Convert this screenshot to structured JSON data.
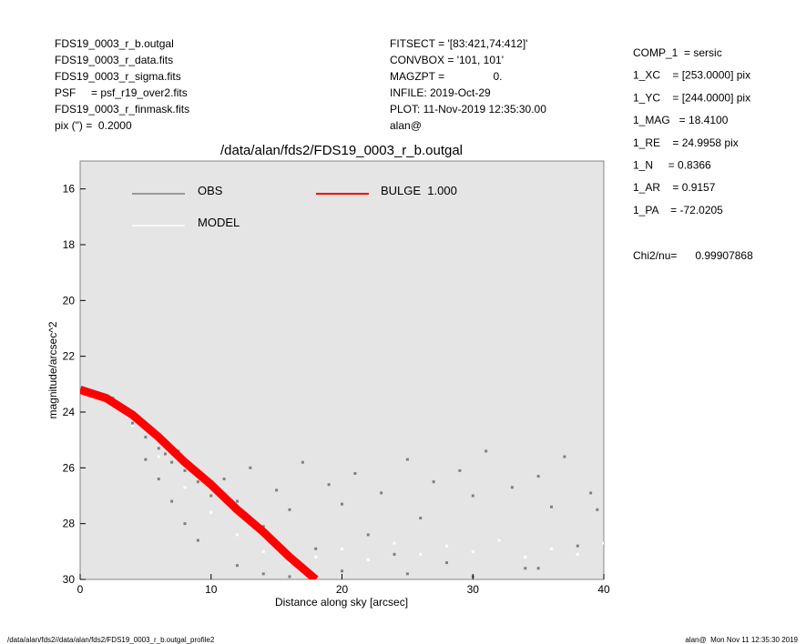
{
  "header": {
    "left": [
      "FDS19_0003_r_b.outgal",
      "FDS19_0003_r_data.fits",
      "FDS19_0003_r_sigma.fits",
      "PSF     = psf_r19_over2.fits",
      "FDS19_0003_r_finmask.fits",
      "pix (\") =  0.2000"
    ],
    "middle": [
      "FITSECT = '[83:421,74:412]'",
      "CONVBOX = '101, 101'",
      "MAGZPT =                0.",
      "INFILE: 2019-Oct-29",
      "PLOT: 11-Nov-2019 12:35:30.00",
      "alan@"
    ],
    "right": [
      "COMP_1  = sersic",
      "1_XC    = [253.0000] pix",
      "1_YC    = [244.0000] pix",
      "1_MAG   = 18.4100",
      "1_RE    = 24.9958 pix",
      "1_N     = 0.8366",
      "1_AR    = 0.9157",
      "1_PA    = -72.0205"
    ],
    "chi2": "Chi2/nu=      0.99907868"
  },
  "footer": {
    "left": "/data/alan/fds2//data/alan/fds2/FDS19_0003_r_b.outgal_profile2",
    "right": "alan@  Mon Nov 11 12:35:30 2019"
  },
  "chart_data": {
    "type": "scatter",
    "title": "/data/alan/fds2/FDS19_0003_r_b.outgal",
    "xlabel": "Distance along sky [arcsec]",
    "ylabel": "magnitude/arcsec^2",
    "xlim": [
      0,
      40
    ],
    "xticks": [
      0,
      10,
      20,
      30,
      40
    ],
    "ylim": [
      30,
      15
    ],
    "yticks": [
      16,
      18,
      20,
      22,
      24,
      26,
      28,
      30
    ],
    "background": "#e5e5e5",
    "series": [
      {
        "name": "OBS",
        "color": "#808080",
        "style": "points",
        "x": [
          1,
          1.5,
          2,
          2.5,
          3,
          3.5,
          4,
          4.5,
          5,
          5.5,
          6,
          6.5,
          7,
          7.5,
          8,
          8.5,
          9,
          9.5,
          10,
          11,
          12,
          13,
          14,
          15,
          16,
          17,
          18,
          19,
          20,
          21,
          22,
          23,
          24,
          25,
          26,
          27,
          28,
          29,
          30,
          31,
          32,
          33,
          34,
          35,
          36,
          37,
          38,
          39,
          39.5,
          5,
          6,
          7,
          8,
          9,
          12,
          14,
          16,
          20,
          25,
          30,
          35
        ],
        "y": [
          23.3,
          23.4,
          23.6,
          23.5,
          23.9,
          24.0,
          24.4,
          24.3,
          24.9,
          24.7,
          25.3,
          25.5,
          25.8,
          25.4,
          26.1,
          25.9,
          26.5,
          26.3,
          27.0,
          26.4,
          27.2,
          26.0,
          28.1,
          26.8,
          27.5,
          25.8,
          28.9,
          26.6,
          27.3,
          26.2,
          28.4,
          26.9,
          29.1,
          25.7,
          27.8,
          26.5,
          29.4,
          26.1,
          27.0,
          25.4,
          28.6,
          26.7,
          29.6,
          26.3,
          27.4,
          25.6,
          28.8,
          26.9,
          27.5,
          25.7,
          26.4,
          27.2,
          28.0,
          28.6,
          29.5,
          29.8,
          29.9,
          29.7,
          29.8,
          29.9,
          29.6
        ]
      },
      {
        "name": "MODEL",
        "color": "#ffffff",
        "style": "points",
        "x": [
          2,
          4,
          6,
          8,
          10,
          12,
          14,
          16,
          18,
          20,
          22,
          24,
          26,
          28,
          30,
          32,
          34,
          36,
          38,
          40
        ],
        "y": [
          23.6,
          24.5,
          25.6,
          26.7,
          27.6,
          28.4,
          29.0,
          29.4,
          29.2,
          28.9,
          29.3,
          28.7,
          29.1,
          28.8,
          29.0,
          28.6,
          29.2,
          28.9,
          29.1,
          28.7
        ]
      },
      {
        "name": "BULGE  1.000",
        "color": "#ff0000",
        "style": "line",
        "x": [
          0,
          2,
          4,
          6,
          8,
          10,
          12,
          14,
          16,
          18
        ],
        "y": [
          23.2,
          23.5,
          24.1,
          24.9,
          25.8,
          26.6,
          27.5,
          28.3,
          29.2,
          30.0
        ]
      }
    ]
  }
}
